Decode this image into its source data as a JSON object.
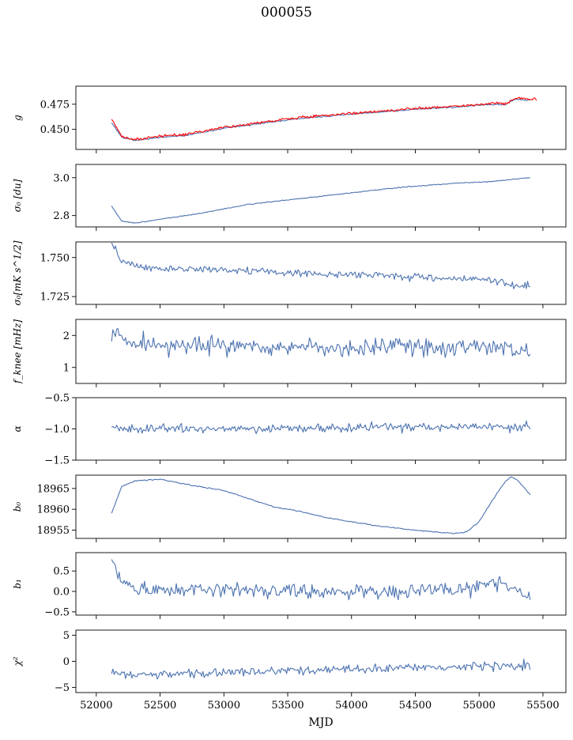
{
  "figure": {
    "title": "000055",
    "xlabel": "MJD",
    "x_ticks": [
      52000,
      52500,
      53000,
      53500,
      54000,
      54500,
      55000,
      55500
    ],
    "xlim": [
      51840,
      55680
    ],
    "data_xrange": [
      52120,
      55400
    ]
  },
  "colors": {
    "series": "#4c72b0",
    "overlay": "#ff0000",
    "axes": "#000000"
  },
  "chart_data": [
    {
      "type": "line",
      "name": "g",
      "ylabel": "g",
      "ylim": [
        0.43,
        0.493
      ],
      "yticks": [
        "0.450",
        "0.475"
      ],
      "ytick_values": [
        0.45,
        0.475
      ],
      "x": [
        52120,
        52200,
        52300,
        52500,
        52700,
        53000,
        53300,
        53600,
        53900,
        54200,
        54500,
        54800,
        55000,
        55150,
        55200,
        55250,
        55300,
        55400
      ],
      "values": [
        0.457,
        0.442,
        0.439,
        0.442,
        0.444,
        0.451,
        0.456,
        0.461,
        0.464,
        0.467,
        0.47,
        0.472,
        0.474,
        0.475,
        0.474,
        0.478,
        0.48,
        0.479
      ],
      "overlay": {
        "x": [
          52120,
          52200,
          52300,
          52500,
          52700,
          53000,
          53300,
          53600,
          53900,
          54200,
          54500,
          54800,
          55000,
          55150,
          55200,
          55250,
          55300,
          55450
        ],
        "values": [
          0.46,
          0.443,
          0.44,
          0.443,
          0.445,
          0.452,
          0.457,
          0.462,
          0.465,
          0.468,
          0.471,
          0.473,
          0.475,
          0.476,
          0.475,
          0.479,
          0.481,
          0.48
        ]
      }
    },
    {
      "type": "line",
      "name": "sigma0_du",
      "ylabel": "σ₀ [du]",
      "ylim": [
        2.74,
        3.07
      ],
      "yticks": [
        "2.8",
        "3.0"
      ],
      "ytick_values": [
        2.8,
        3.0
      ],
      "x": [
        52120,
        52200,
        52300,
        52500,
        52800,
        53200,
        53600,
        54000,
        54400,
        54800,
        55100,
        55400
      ],
      "values": [
        2.85,
        2.77,
        2.76,
        2.78,
        2.81,
        2.86,
        2.89,
        2.92,
        2.95,
        2.97,
        2.98,
        3.0
      ]
    },
    {
      "type": "line",
      "name": "sigma0_mKs",
      "ylabel": "σ₀[mK s^1/2]",
      "ylim": [
        1.72,
        1.76
      ],
      "yticks": [
        "1.725",
        "1.750"
      ],
      "ytick_values": [
        1.725,
        1.75
      ],
      "x": [
        52120,
        52200,
        52400,
        52700,
        53000,
        53400,
        53800,
        54200,
        54600,
        55000,
        55300,
        55400
      ],
      "values": [
        1.76,
        1.747,
        1.743,
        1.743,
        1.742,
        1.741,
        1.739,
        1.739,
        1.737,
        1.736,
        1.732,
        1.732
      ]
    },
    {
      "type": "line",
      "name": "f_knee",
      "ylabel": "f_knee [mHz]",
      "ylim": [
        0.5,
        2.5
      ],
      "yticks": [
        "1",
        "2"
      ],
      "ytick_values": [
        1,
        2
      ],
      "x": [
        52120,
        52300,
        52600,
        53000,
        53400,
        53800,
        54200,
        54600,
        55000,
        55400
      ],
      "values": [
        2.0,
        1.8,
        1.7,
        1.65,
        1.65,
        1.6,
        1.62,
        1.6,
        1.6,
        1.55
      ]
    },
    {
      "type": "line",
      "name": "alpha",
      "ylabel": "α",
      "ylim": [
        -1.5,
        -0.5
      ],
      "yticks": [
        "−1.5",
        "−1.0",
        "−0.5"
      ],
      "ytick_values": [
        -1.5,
        -1.0,
        -0.5
      ],
      "x": [
        52120,
        52600,
        53200,
        53800,
        54400,
        55000,
        55400
      ],
      "values": [
        -1.0,
        -1.0,
        -0.99,
        -0.98,
        -0.97,
        -0.96,
        -0.97
      ]
    },
    {
      "type": "line",
      "name": "b0",
      "ylabel": "b₀",
      "ylim": [
        18953,
        18968.2
      ],
      "yticks": [
        "18955",
        "18960",
        "18965"
      ],
      "ytick_values": [
        18955,
        18960,
        18965
      ],
      "x": [
        52120,
        52200,
        52300,
        52500,
        52700,
        53000,
        53200,
        53400,
        53600,
        53800,
        54000,
        54200,
        54400,
        54600,
        54800,
        54900,
        55000,
        55100,
        55200,
        55250,
        55300,
        55400
      ],
      "values": [
        18959,
        18965.5,
        18966.8,
        18967.2,
        18966,
        18964.5,
        18962.5,
        18960.5,
        18959.5,
        18958,
        18957,
        18956,
        18955.3,
        18954.7,
        18954.2,
        18954.5,
        18957,
        18962,
        18966.5,
        18967.8,
        18967,
        18963.5
      ]
    },
    {
      "type": "line",
      "name": "b1",
      "ylabel": "b₁",
      "ylim": [
        -0.58,
        0.95
      ],
      "yticks": [
        "−0.5",
        "0.0",
        "0.5"
      ],
      "ytick_values": [
        -0.5,
        0.0,
        0.5
      ],
      "x": [
        52120,
        52200,
        52300,
        52600,
        53000,
        53500,
        54000,
        54500,
        54900,
        55100,
        55300,
        55400
      ],
      "values": [
        0.7,
        0.3,
        0.05,
        0.05,
        0.02,
        0.0,
        0.0,
        0.0,
        0.05,
        0.25,
        0.05,
        -0.15
      ]
    },
    {
      "type": "line",
      "name": "chi2",
      "ylabel": "χ²",
      "ylim": [
        -6,
        6
      ],
      "yticks": [
        "−5",
        "0",
        "5"
      ],
      "ytick_values": [
        -5,
        0,
        5
      ],
      "x": [
        52120,
        52300,
        52600,
        53000,
        53500,
        54000,
        54500,
        55000,
        55400
      ],
      "values": [
        -2.2,
        -2.6,
        -2.5,
        -2.2,
        -1.8,
        -1.5,
        -1.2,
        -1.0,
        -0.8
      ]
    }
  ]
}
